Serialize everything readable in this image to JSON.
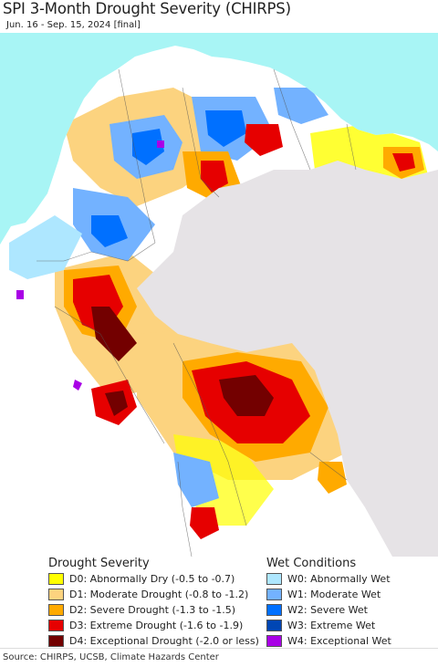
{
  "title": "SPI 3-Month Drought Severity (CHIRPS)",
  "subtitle": "Jun. 16 - Sep. 15, 2024 [final]",
  "legend": {
    "drought_heading": "Drought Severity",
    "wet_heading": "Wet Conditions",
    "drought_items": [
      {
        "label": "D0: Abnormally Dry (-0.5 to -0.7)",
        "color": "#ffff00"
      },
      {
        "label": "D1: Moderate Drought (-0.8 to -1.2)",
        "color": "#fcd37f"
      },
      {
        "label": "D2: Severe Drought (-1.3 to -1.5)",
        "color": "#ffaa00"
      },
      {
        "label": "D3: Extreme Drought (-1.6 to -1.9)",
        "color": "#e60000"
      },
      {
        "label": "D4: Exceptional Drought (-2.0 or less)",
        "color": "#730000"
      }
    ],
    "wet_items": [
      {
        "label": "W0: Abnormally Wet",
        "color": "#aee7ff"
      },
      {
        "label": "W1: Moderate Wet",
        "color": "#73b2ff"
      },
      {
        "label": "W2: Severe Wet",
        "color": "#0070ff"
      },
      {
        "label": "W3: Extreme Wet",
        "color": "#0046b4"
      },
      {
        "label": "W4: Exceptional Wet",
        "color": "#a900e6"
      }
    ]
  },
  "map": {
    "ocean_color": "#a8f5f5",
    "land_color": "#ffffff",
    "outside_region_color": "#e6e3e6"
  },
  "source": "Source: CHIRPS, UCSB, Climate Hazards Center"
}
